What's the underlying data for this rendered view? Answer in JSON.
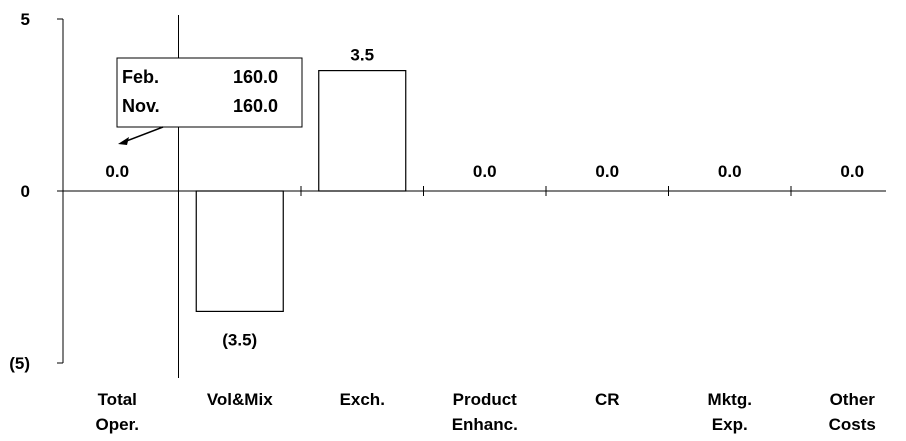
{
  "chart_data": {
    "type": "bar",
    "categories": [
      [
        "Total",
        "Oper."
      ],
      [
        "Vol&Mix",
        ""
      ],
      [
        "Exch.",
        ""
      ],
      [
        "Product",
        "Enhanc."
      ],
      [
        "CR",
        ""
      ],
      [
        "Mktg.",
        "Exp."
      ],
      [
        "Other",
        "Costs"
      ]
    ],
    "values": [
      0.0,
      -3.5,
      3.5,
      0.0,
      0.0,
      0.0,
      0.0
    ],
    "data_labels": [
      "0.0",
      "(3.5)",
      "3.5",
      "0.0",
      "0.0",
      "0.0",
      "0.0"
    ],
    "ylim": [
      -5,
      5
    ],
    "y_ticks": [
      -5,
      0,
      5
    ],
    "y_tick_labels": [
      "(5)",
      "0",
      "5"
    ],
    "grid": false,
    "bar_fill": "#ffffff",
    "bar_stroke": "#000000",
    "callout": {
      "rows": [
        {
          "label": "Feb.",
          "value": "160.0"
        },
        {
          "label": "Nov.",
          "value": "160.0"
        }
      ]
    }
  }
}
